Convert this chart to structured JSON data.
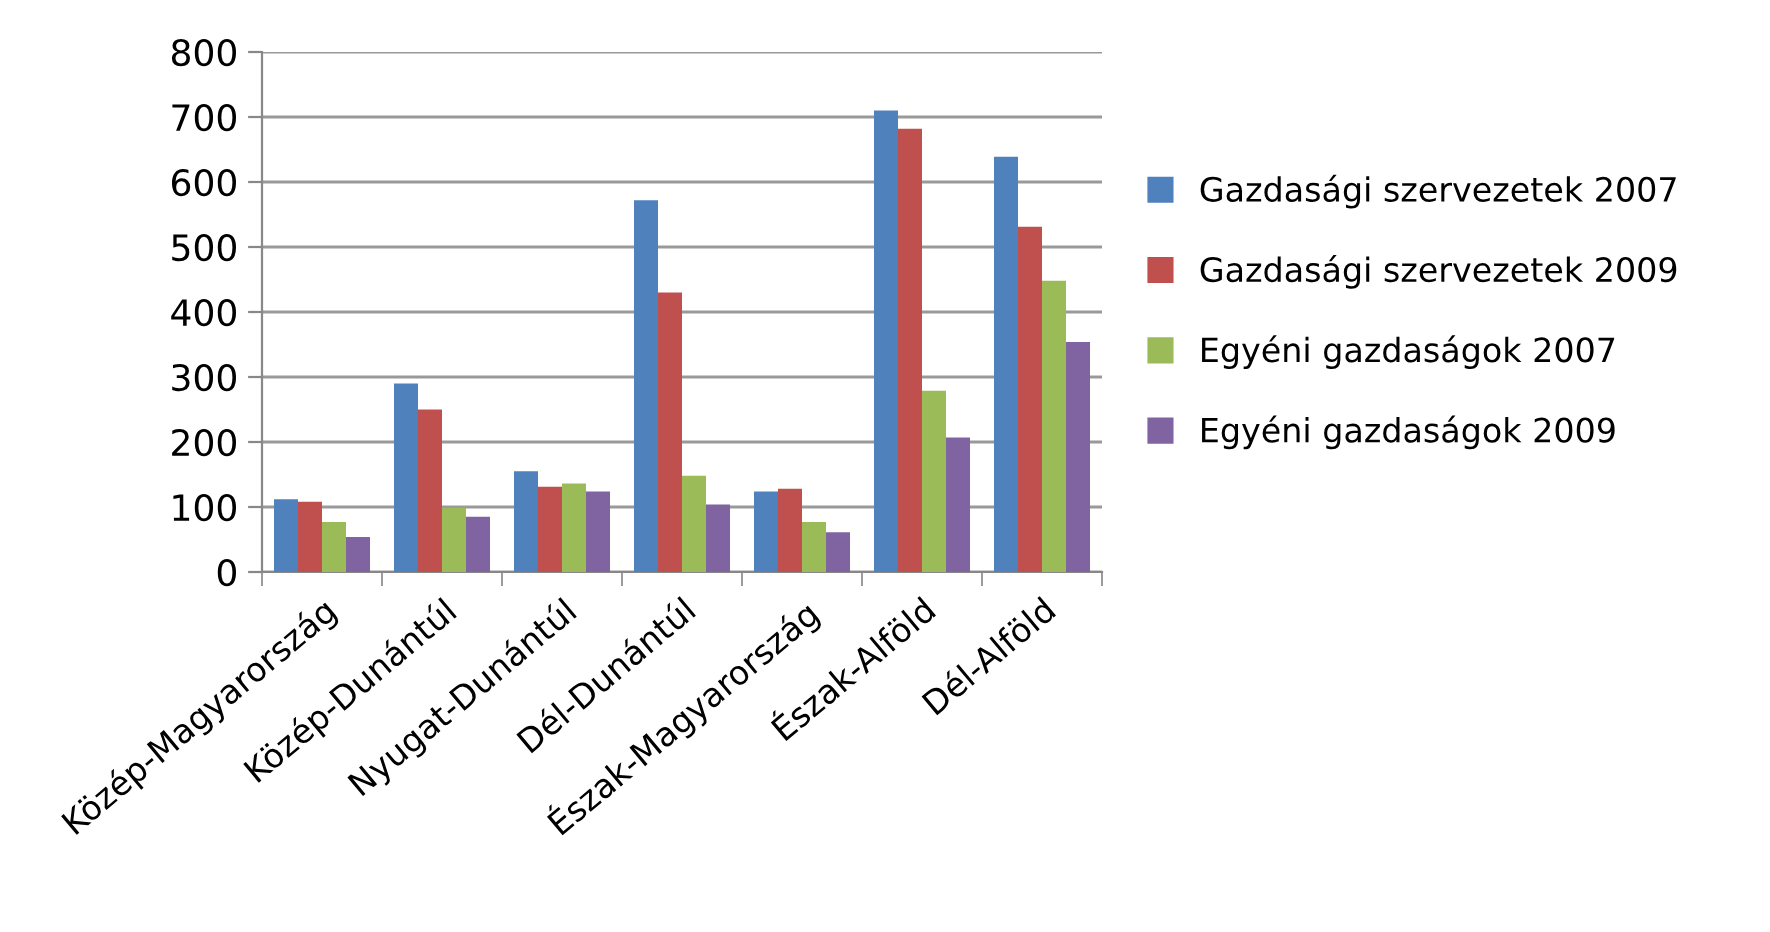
{
  "chart_data": {
    "type": "bar",
    "categories": [
      "Közép-Magyarország",
      "Közép-Dunántúl",
      "Nyugat-Dunántúl",
      "Dél-Dunántúl",
      "Észak-Magyarország",
      "Észak-Alföld",
      "Dél-Alföld"
    ],
    "series": [
      {
        "name": "Gazdasági szervezetek 2007",
        "color": "#4f81bd",
        "values": [
          112,
          290,
          155,
          572,
          124,
          710,
          639
        ]
      },
      {
        "name": "Gazdasági szervezetek 2009",
        "color": "#c0504d",
        "values": [
          108,
          250,
          131,
          430,
          128,
          682,
          531
        ]
      },
      {
        "name": "Egyéni gazdaságok 2007",
        "color": "#9bbb59",
        "values": [
          77,
          99,
          136,
          148,
          77,
          279,
          448
        ]
      },
      {
        "name": "Egyéni gazdaságok 2009",
        "color": "#8064a2",
        "values": [
          54,
          85,
          124,
          104,
          61,
          207,
          354
        ]
      }
    ],
    "ylim": [
      0,
      800
    ],
    "yticks": [
      0,
      100,
      200,
      300,
      400,
      500,
      600,
      700,
      800
    ],
    "grid": "y",
    "legend": "right"
  }
}
